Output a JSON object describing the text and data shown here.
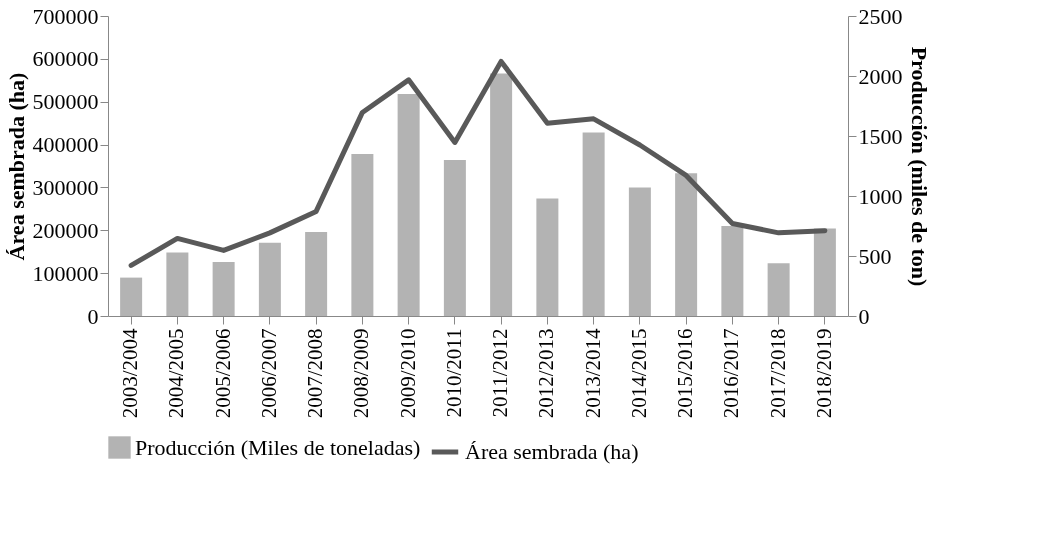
{
  "chart_data": {
    "type": "bar",
    "categories": [
      "2003/2004",
      "2004/2005",
      "2005/2006",
      "2006/2007",
      "2007/2008",
      "2008/2009",
      "2009/2010",
      "2010/2011",
      "2011/2012",
      "2012/2013",
      "2013/2014",
      "2014/2015",
      "2015/2016",
      "2016/2017",
      "2017/2018",
      "2018/2019"
    ],
    "ylabel": "Área sembrada (ha)",
    "y2label": "Producción (miles de ton)",
    "ylim": [
      0,
      700000
    ],
    "yticks": [
      0,
      100000,
      200000,
      300000,
      400000,
      500000,
      600000,
      700000
    ],
    "y2lim": [
      0,
      2500
    ],
    "y2ticks": [
      0,
      500,
      1000,
      1500,
      2000,
      2500
    ],
    "series": [
      {
        "name": "Producción (Miles de toneladas)",
        "axis": "y2",
        "color": "#b3b3b3",
        "values": [
          320,
          530,
          450,
          610,
          700,
          1350,
          1850,
          1300,
          2020,
          980,
          1530,
          1070,
          1190,
          750,
          440,
          730
        ]
      },
      {
        "name": "Área sembrada (ha)",
        "type": "line",
        "axis": "y",
        "color": "#595959",
        "values": [
          118000,
          181000,
          153000,
          194000,
          244000,
          475000,
          551000,
          405000,
          594000,
          450000,
          460000,
          399000,
          328000,
          216000,
          194000,
          199000
        ]
      }
    ],
    "grid": false,
    "legend": "bottom",
    "marker": "none",
    "line_style": "solid"
  }
}
